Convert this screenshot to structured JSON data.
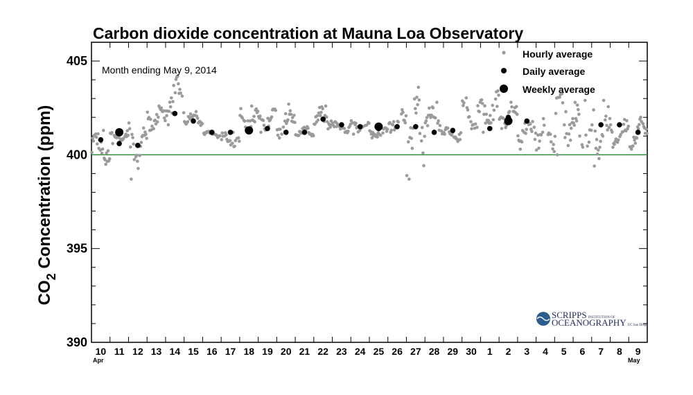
{
  "chart_data": {
    "type": "scatter",
    "title": "Carbon dioxide concentration at Mauna Loa Observatory",
    "ylabel_main": "CO",
    "ylabel_sub": "2",
    "ylabel_rest": " Concentration (ppm)",
    "annotation": "Month ending May 9, 2014",
    "ylim": [
      390,
      406
    ],
    "yticks": [
      "390",
      "395",
      "400",
      "405"
    ],
    "xlim": [
      "2014-04-10",
      "2014-05-09"
    ],
    "xticks": [
      "10",
      "11",
      "12",
      "13",
      "14",
      "15",
      "16",
      "17",
      "18",
      "19",
      "20",
      "21",
      "22",
      "23",
      "24",
      "25",
      "26",
      "27",
      "28",
      "29",
      "30",
      "1",
      "2",
      "3",
      "4",
      "5",
      "6",
      "7",
      "8",
      "9"
    ],
    "xmonth_labels": {
      "start": "Apr",
      "end": "May"
    },
    "reference_line": {
      "y": 400,
      "color": "#2e8b3a"
    },
    "legend": {
      "placement": "top-right",
      "entries": [
        "Hourly average",
        "Daily average",
        "Weekly average"
      ]
    },
    "series": [
      {
        "name": "Hourly average",
        "color": "#9a9a9a",
        "marker": "small-dot",
        "x": [
          "2014-04-10",
          "2014-04-11",
          "2014-04-12",
          "2014-04-13",
          "2014-04-14",
          "2014-04-15",
          "2014-04-16",
          "2014-04-17",
          "2014-04-18",
          "2014-04-19",
          "2014-04-20",
          "2014-04-21",
          "2014-04-22",
          "2014-04-23",
          "2014-04-24",
          "2014-04-25",
          "2014-04-26",
          "2014-04-27",
          "2014-04-28",
          "2014-04-29",
          "2014-04-30",
          "2014-05-01",
          "2014-05-02",
          "2014-05-03",
          "2014-05-04",
          "2014-05-05",
          "2014-05-06",
          "2014-05-07",
          "2014-05-08",
          "2014-05-09"
        ],
        "daily_range_min": [
          399.3,
          400.6,
          398.7,
          401.3,
          401.6,
          401.5,
          400.9,
          400.4,
          401.2,
          401.2,
          400.9,
          400.9,
          401.2,
          401.1,
          401.1,
          400.9,
          401.2,
          398.7,
          401.1,
          400.7,
          400.9,
          401.2,
          401.4,
          400.3,
          399.9,
          400.0,
          400.0,
          399.4,
          400.4,
          400.3
        ],
        "daily_range_max": [
          401.3,
          401.4,
          402.3,
          402.6,
          404.2,
          402.3,
          401.3,
          401.2,
          402.6,
          402.6,
          402.7,
          401.5,
          402.6,
          401.8,
          402.1,
          401.5,
          402.5,
          403.6,
          402.8,
          401.5,
          403.3,
          403.5,
          402.8,
          402.2,
          402.0,
          403.8,
          402.9,
          402.9,
          401.9,
          402.0
        ]
      },
      {
        "name": "Daily average",
        "color": "#000000",
        "marker": "dot",
        "x": [
          "2014-04-10",
          "2014-04-11",
          "2014-04-12",
          "2014-04-13",
          "2014-04-14",
          "2014-04-15",
          "2014-04-16",
          "2014-04-17",
          "2014-04-18",
          "2014-04-19",
          "2014-04-20",
          "2014-04-21",
          "2014-04-22",
          "2014-04-23",
          "2014-04-24",
          "2014-04-25",
          "2014-04-26",
          "2014-04-27",
          "2014-04-28",
          "2014-04-29",
          "2014-04-30",
          "2014-05-01",
          "2014-05-02",
          "2014-05-03",
          "2014-05-04",
          "2014-05-05",
          "2014-05-06",
          "2014-05-07",
          "2014-05-08",
          "2014-05-09"
        ],
        "values": [
          400.8,
          400.6,
          400.5,
          null,
          402.2,
          401.8,
          401.2,
          401.2,
          null,
          401.4,
          401.2,
          401.2,
          401.9,
          401.6,
          401.5,
          401.4,
          401.5,
          401.5,
          401.2,
          401.3,
          null,
          401.4,
          402.0,
          401.8,
          null,
          null,
          null,
          401.6,
          401.6,
          401.2
        ]
      },
      {
        "name": "Weekly average",
        "color": "#000000",
        "marker": "large-dot",
        "x": [
          "2014-04-11",
          "2014-04-18",
          "2014-04-25",
          "2014-05-02"
        ],
        "values": [
          401.2,
          401.3,
          401.5,
          401.8
        ]
      }
    ]
  },
  "logo": {
    "line1": "SCRIPPS",
    "line1_small": "INSTITUTION OF",
    "line2": "OCEANOGRAPHY",
    "line2_small": "UC San Diego"
  }
}
